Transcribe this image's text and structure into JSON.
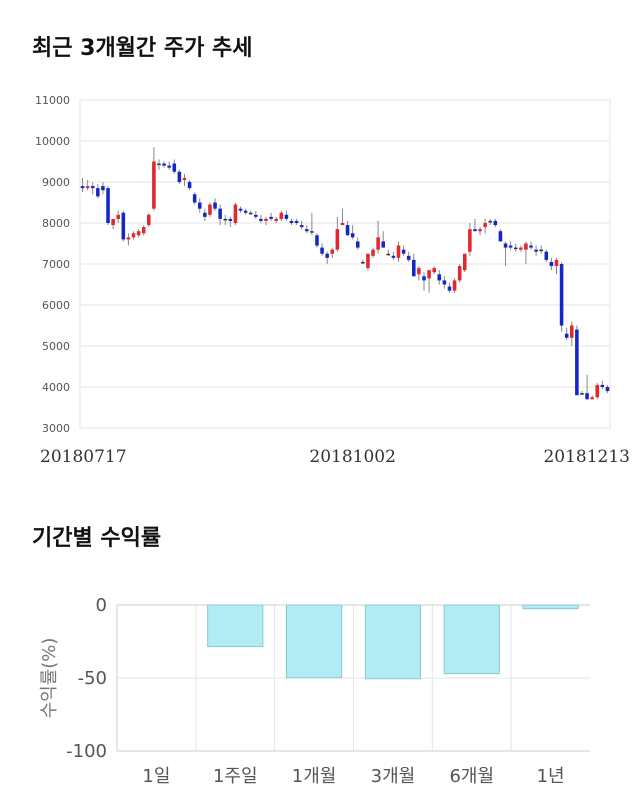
{
  "sections": {
    "price_title": "최근 3개월간 주가 추세",
    "return_title": "기간별 수익률"
  },
  "colors": {
    "up": "#e0282e",
    "down": "#1428c8",
    "bar_fill": "#b2ebf2",
    "bar_stroke": "#88c8d4",
    "grid": "#e6e6e6"
  },
  "chart_data": [
    {
      "type": "candlestick",
      "title": "최근 3개월간 주가 추세",
      "ylim": [
        3000,
        11000
      ],
      "yticks": [
        3000,
        4000,
        5000,
        6000,
        7000,
        8000,
        9000,
        10000,
        11000
      ],
      "xtick_labels": [
        {
          "index": 0,
          "label": "20180717"
        },
        {
          "index": 53,
          "label": "20181002"
        },
        {
          "index": 103,
          "label": "20181213"
        }
      ],
      "grid": true,
      "ohlc": [
        [
          8900,
          9100,
          8750,
          8850
        ],
        [
          8850,
          9050,
          8800,
          8900
        ],
        [
          8900,
          9000,
          8700,
          8850
        ],
        [
          8850,
          8950,
          8600,
          8650
        ],
        [
          8900,
          9000,
          8700,
          8800
        ],
        [
          8850,
          8900,
          7950,
          8000
        ],
        [
          7950,
          8050,
          7850,
          8100
        ],
        [
          8100,
          8300,
          8000,
          8200
        ],
        [
          8250,
          8300,
          7550,
          7600
        ],
        [
          7600,
          7750,
          7450,
          7650
        ],
        [
          7650,
          7800,
          7600,
          7750
        ],
        [
          7700,
          7850,
          7650,
          7800
        ],
        [
          7750,
          7950,
          7700,
          7900
        ],
        [
          7950,
          8250,
          7900,
          8200
        ],
        [
          8350,
          9850,
          8300,
          9500
        ],
        [
          9450,
          9550,
          9300,
          9450
        ],
        [
          9450,
          9500,
          9350,
          9400
        ],
        [
          9400,
          9500,
          9300,
          9350
        ],
        [
          9450,
          9550,
          9200,
          9250
        ],
        [
          9250,
          9300,
          8950,
          9000
        ],
        [
          9050,
          9200,
          8900,
          9100
        ],
        [
          9000,
          9050,
          8800,
          8850
        ],
        [
          8700,
          8750,
          8450,
          8500
        ],
        [
          8500,
          8600,
          8250,
          8350
        ],
        [
          8250,
          8350,
          8050,
          8150
        ],
        [
          8200,
          8500,
          8150,
          8450
        ],
        [
          8500,
          8600,
          8300,
          8350
        ],
        [
          8350,
          8450,
          7950,
          8100
        ],
        [
          8100,
          8200,
          7950,
          8100
        ],
        [
          8100,
          8150,
          7900,
          8050
        ],
        [
          8000,
          8500,
          7950,
          8450
        ],
        [
          8350,
          8400,
          8250,
          8300
        ],
        [
          8300,
          8350,
          8200,
          8250
        ],
        [
          8250,
          8300,
          8200,
          8250
        ],
        [
          8200,
          8300,
          8100,
          8150
        ],
        [
          8100,
          8200,
          8000,
          8050
        ],
        [
          8050,
          8150,
          7950,
          8100
        ],
        [
          8150,
          8250,
          8050,
          8100
        ],
        [
          8050,
          8150,
          8000,
          8100
        ],
        [
          8100,
          8300,
          8050,
          8250
        ],
        [
          8200,
          8300,
          8050,
          8100
        ],
        [
          8050,
          8100,
          7950,
          8000
        ],
        [
          8050,
          8100,
          7950,
          8000
        ],
        [
          7950,
          8050,
          7850,
          7900
        ],
        [
          7850,
          7950,
          7750,
          7800
        ],
        [
          7800,
          8250,
          7700,
          7800
        ],
        [
          7700,
          7750,
          7400,
          7450
        ],
        [
          7400,
          7500,
          7200,
          7250
        ],
        [
          7250,
          7300,
          7000,
          7150
        ],
        [
          7250,
          7400,
          7150,
          7350
        ],
        [
          7350,
          8150,
          7300,
          7850
        ],
        [
          7950,
          8350,
          7950,
          8000
        ],
        [
          7950,
          8050,
          7700,
          7700
        ],
        [
          7750,
          7950,
          7600,
          7650
        ],
        [
          7550,
          7650,
          7350,
          7400
        ],
        [
          7050,
          7100,
          7000,
          7050
        ],
        [
          6900,
          7250,
          6850,
          7250
        ],
        [
          7200,
          7400,
          7150,
          7350
        ],
        [
          7350,
          8050,
          7250,
          7650
        ],
        [
          7550,
          7800,
          7400,
          7400
        ],
        [
          7250,
          7350,
          7200,
          7250
        ],
        [
          7200,
          7300,
          7100,
          7150
        ],
        [
          7150,
          7550,
          7050,
          7450
        ],
        [
          7350,
          7450,
          7200,
          7250
        ],
        [
          7200,
          7300,
          7050,
          7100
        ],
        [
          7100,
          7250,
          6700,
          6700
        ],
        [
          6750,
          6950,
          6600,
          6900
        ],
        [
          6700,
          6800,
          6350,
          6600
        ],
        [
          6650,
          6850,
          6300,
          6850
        ],
        [
          6800,
          6950,
          6750,
          6900
        ],
        [
          6750,
          6850,
          6500,
          6600
        ],
        [
          6600,
          6700,
          6400,
          6500
        ],
        [
          6450,
          6550,
          6300,
          6350
        ],
        [
          6350,
          6650,
          6300,
          6600
        ],
        [
          6600,
          7000,
          6550,
          6950
        ],
        [
          6850,
          7250,
          6800,
          7250
        ],
        [
          7300,
          8000,
          7200,
          7850
        ],
        [
          7850,
          8100,
          7800,
          7800
        ],
        [
          7800,
          7900,
          7700,
          7850
        ],
        [
          7900,
          8100,
          7750,
          8000
        ],
        [
          8050,
          8100,
          7950,
          8050
        ],
        [
          8050,
          8100,
          7900,
          7950
        ],
        [
          7800,
          7850,
          7550,
          7550
        ],
        [
          7500,
          7550,
          6950,
          7400
        ],
        [
          7450,
          7550,
          7350,
          7400
        ],
        [
          7400,
          7500,
          7300,
          7400
        ],
        [
          7350,
          7450,
          7300,
          7400
        ],
        [
          7350,
          7550,
          7000,
          7500
        ],
        [
          7450,
          7550,
          7350,
          7400
        ],
        [
          7350,
          7450,
          7200,
          7300
        ],
        [
          7350,
          7450,
          7250,
          7350
        ],
        [
          7300,
          7350,
          7050,
          7100
        ],
        [
          7050,
          7150,
          6850,
          6950
        ],
        [
          6950,
          7150,
          6750,
          7100
        ],
        [
          7000,
          7050,
          5350,
          5500
        ],
        [
          5300,
          5450,
          5150,
          5200
        ],
        [
          5200,
          5600,
          5000,
          5500
        ],
        [
          5400,
          5500,
          3800,
          3800
        ],
        [
          3850,
          3900,
          3800,
          3850
        ],
        [
          3850,
          4300,
          3700,
          3700
        ],
        [
          3700,
          3800,
          3700,
          3750
        ],
        [
          3750,
          4100,
          3700,
          4050
        ],
        [
          4050,
          4150,
          3950,
          4000
        ],
        [
          4000,
          4050,
          3850,
          3900
        ]
      ]
    },
    {
      "type": "bar",
      "title": "기간별 수익률",
      "categories": [
        "1일",
        "1주일",
        "1개월",
        "3개월",
        "6개월",
        "1년"
      ],
      "values": [
        0,
        -28.5,
        -49.8,
        -50.5,
        -47.0,
        -2.5
      ],
      "ylabel": "수익률(%)",
      "ylim": [
        -100,
        0
      ],
      "yticks": [
        0,
        -50,
        -100
      ],
      "grid": true
    }
  ]
}
